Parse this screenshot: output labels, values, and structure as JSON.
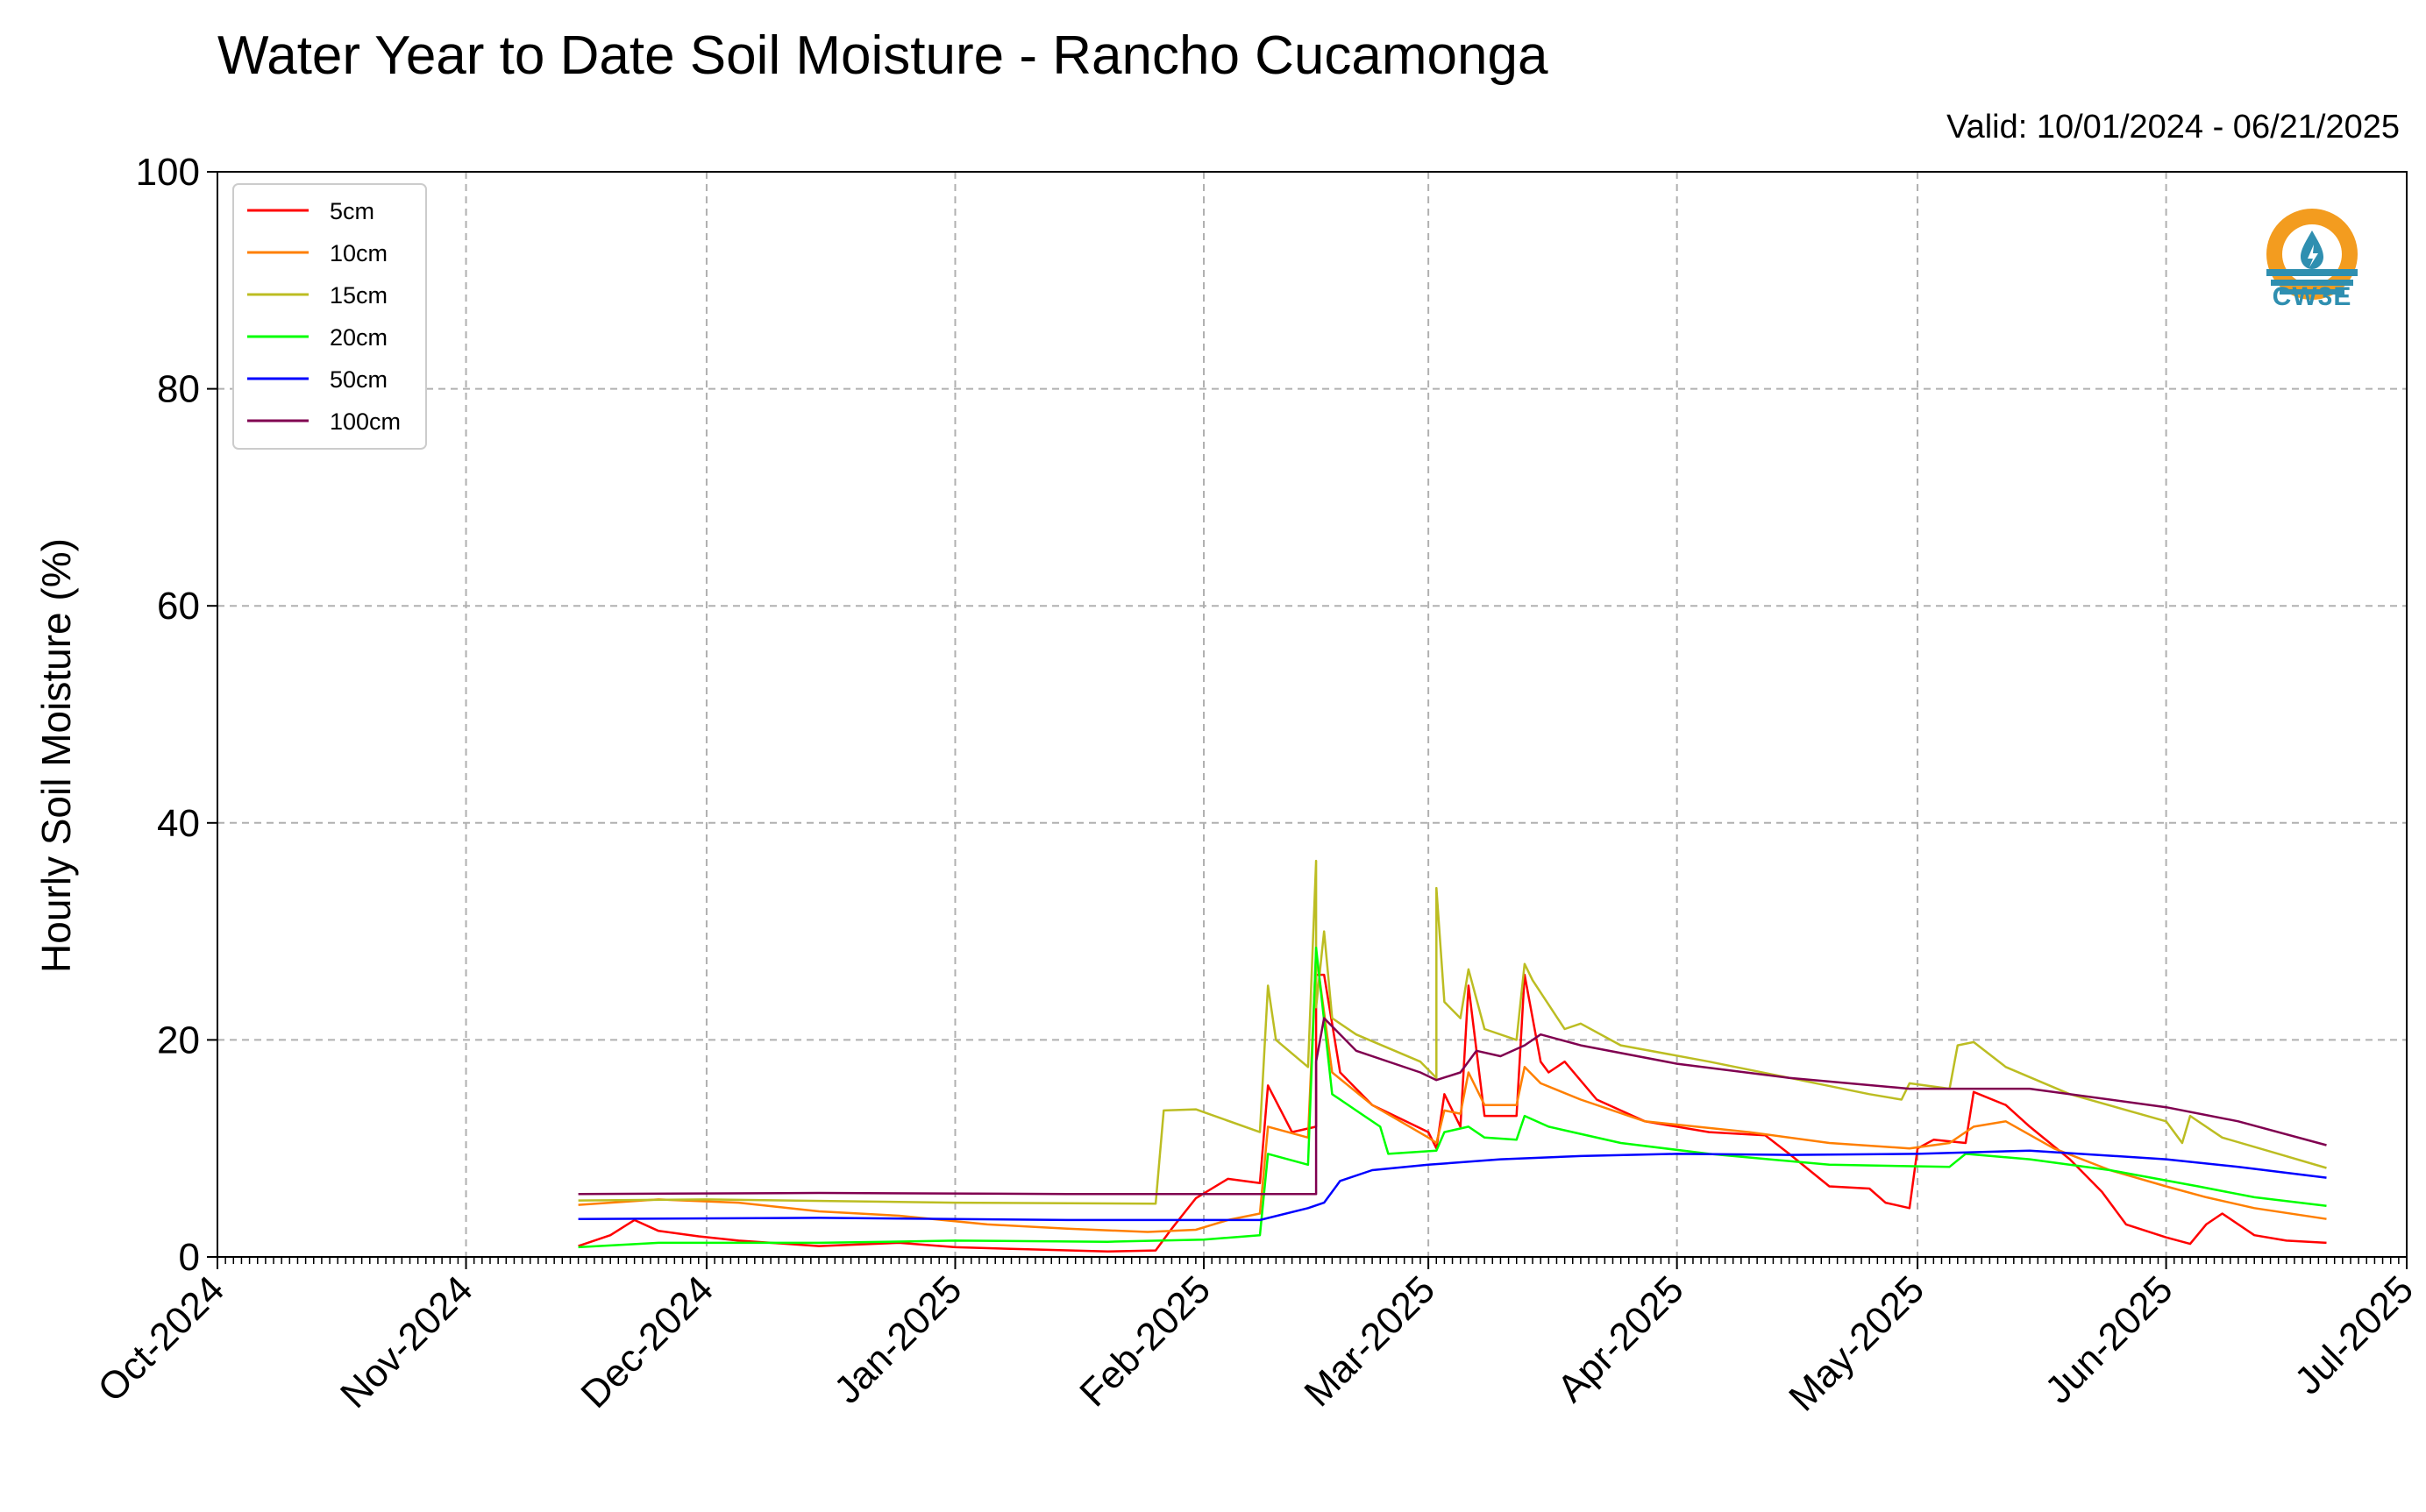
{
  "chart_data": {
    "type": "line",
    "title": "Water Year to Date Soil Moisture - Rancho Cucamonga",
    "subtitle": "Valid: 10/01/2024 - 06/21/2025",
    "ylabel": "Hourly Soil Moisture (%)",
    "xlabel": "",
    "ylim": [
      0,
      100
    ],
    "yticks": [
      0,
      20,
      40,
      60,
      80,
      100
    ],
    "xlim": [
      "2024-10-01",
      "2025-07-01"
    ],
    "xticks": [
      "Oct-2024",
      "Nov-2024",
      "Dec-2024",
      "Jan-2025",
      "Feb-2025",
      "Mar-2025",
      "Apr-2025",
      "May-2025",
      "Jun-2025",
      "Jul-2025"
    ],
    "grid": true,
    "legend_position": "top-left",
    "series": [
      {
        "name": "5cm",
        "color": "#ff0000",
        "points": [
          [
            "2024-11-15",
            1.0
          ],
          [
            "2024-11-19",
            2.0
          ],
          [
            "2024-11-22",
            3.4
          ],
          [
            "2024-11-25",
            2.4
          ],
          [
            "2024-11-30",
            1.9
          ],
          [
            "2024-12-05",
            1.5
          ],
          [
            "2024-12-15",
            1.0
          ],
          [
            "2024-12-25",
            1.3
          ],
          [
            "2025-01-01",
            0.9
          ],
          [
            "2025-01-10",
            0.7
          ],
          [
            "2025-01-20",
            0.5
          ],
          [
            "2025-01-26",
            0.6
          ],
          [
            "2025-01-28",
            2.6
          ],
          [
            "2025-01-31",
            5.4
          ],
          [
            "2025-02-04",
            7.2
          ],
          [
            "2025-02-08",
            6.8
          ],
          [
            "2025-02-08",
            6.8
          ],
          [
            "2025-02-09",
            15.8
          ],
          [
            "2025-02-12",
            11.5
          ],
          [
            "2025-02-15",
            12.0
          ],
          [
            "2025-02-15",
            26.0
          ],
          [
            "2025-02-16",
            26.0
          ],
          [
            "2025-02-18",
            17.0
          ],
          [
            "2025-02-22",
            14.0
          ],
          [
            "2025-03-01",
            11.5
          ],
          [
            "2025-03-02",
            10.0
          ],
          [
            "2025-03-03",
            15.0
          ],
          [
            "2025-03-05",
            12.0
          ],
          [
            "2025-03-06",
            25.0
          ],
          [
            "2025-03-08",
            13.0
          ],
          [
            "2025-03-12",
            13.0
          ],
          [
            "2025-03-13",
            26.0
          ],
          [
            "2025-03-15",
            18.0
          ],
          [
            "2025-03-16",
            17.0
          ],
          [
            "2025-03-18",
            18.0
          ],
          [
            "2025-03-22",
            14.5
          ],
          [
            "2025-03-28",
            12.5
          ],
          [
            "2025-04-05",
            11.5
          ],
          [
            "2025-04-12",
            11.2
          ],
          [
            "2025-04-15",
            9.5
          ],
          [
            "2025-04-20",
            6.5
          ],
          [
            "2025-04-25",
            6.3
          ],
          [
            "2025-04-27",
            5.0
          ],
          [
            "2025-04-30",
            4.5
          ],
          [
            "2025-05-01",
            10.0
          ],
          [
            "2025-05-03",
            10.8
          ],
          [
            "2025-05-07",
            10.5
          ],
          [
            "2025-05-08",
            15.2
          ],
          [
            "2025-05-12",
            14.0
          ],
          [
            "2025-05-15",
            12.0
          ],
          [
            "2025-05-20",
            9.0
          ],
          [
            "2025-05-24",
            6.0
          ],
          [
            "2025-05-27",
            3.0
          ],
          [
            "2025-06-01",
            1.8
          ],
          [
            "2025-06-04",
            1.2
          ],
          [
            "2025-06-06",
            3.0
          ],
          [
            "2025-06-08",
            4.0
          ],
          [
            "2025-06-12",
            2.0
          ],
          [
            "2025-06-16",
            1.5
          ],
          [
            "2025-06-21",
            1.3
          ]
        ]
      },
      {
        "name": "10cm",
        "color": "#ff7f00",
        "points": [
          [
            "2024-11-15",
            4.8
          ],
          [
            "2024-11-25",
            5.3
          ],
          [
            "2024-12-05",
            5.0
          ],
          [
            "2024-12-15",
            4.2
          ],
          [
            "2024-12-25",
            3.8
          ],
          [
            "2025-01-05",
            3.0
          ],
          [
            "2025-01-15",
            2.6
          ],
          [
            "2025-01-25",
            2.3
          ],
          [
            "2025-01-31",
            2.5
          ],
          [
            "2025-02-04",
            3.4
          ],
          [
            "2025-02-08",
            4.0
          ],
          [
            "2025-02-09",
            12.0
          ],
          [
            "2025-02-14",
            11.0
          ],
          [
            "2025-02-15",
            28.0
          ],
          [
            "2025-02-17",
            17.0
          ],
          [
            "2025-02-22",
            14.0
          ],
          [
            "2025-03-01",
            11.0
          ],
          [
            "2025-03-02",
            10.5
          ],
          [
            "2025-03-03",
            13.5
          ],
          [
            "2025-03-05",
            13.2
          ],
          [
            "2025-03-06",
            17.0
          ],
          [
            "2025-03-08",
            14.0
          ],
          [
            "2025-03-12",
            14.0
          ],
          [
            "2025-03-13",
            17.5
          ],
          [
            "2025-03-15",
            16.0
          ],
          [
            "2025-03-20",
            14.5
          ],
          [
            "2025-03-28",
            12.5
          ],
          [
            "2025-04-10",
            11.5
          ],
          [
            "2025-04-20",
            10.5
          ],
          [
            "2025-04-30",
            10.0
          ],
          [
            "2025-05-05",
            10.5
          ],
          [
            "2025-05-08",
            12.0
          ],
          [
            "2025-05-12",
            12.5
          ],
          [
            "2025-05-18",
            10.0
          ],
          [
            "2025-05-25",
            8.0
          ],
          [
            "2025-06-01",
            6.5
          ],
          [
            "2025-06-06",
            5.5
          ],
          [
            "2025-06-12",
            4.5
          ],
          [
            "2025-06-21",
            3.5
          ]
        ]
      },
      {
        "name": "15cm",
        "color": "#bcbd22",
        "points": [
          [
            "2024-11-15",
            5.2
          ],
          [
            "2024-12-01",
            5.3
          ],
          [
            "2025-01-01",
            5.0
          ],
          [
            "2025-01-26",
            4.9
          ],
          [
            "2025-01-27",
            13.5
          ],
          [
            "2025-01-31",
            13.6
          ],
          [
            "2025-02-08",
            11.5
          ],
          [
            "2025-02-09",
            25.0
          ],
          [
            "2025-02-10",
            20.0
          ],
          [
            "2025-02-14",
            17.5
          ],
          [
            "2025-02-15",
            36.5
          ],
          [
            "2025-02-15",
            23.0
          ],
          [
            "2025-02-16",
            30.0
          ],
          [
            "2025-02-17",
            22.0
          ],
          [
            "2025-02-20",
            20.5
          ],
          [
            "2025-02-28",
            18.0
          ],
          [
            "2025-03-02",
            16.5
          ],
          [
            "2025-03-02",
            34.0
          ],
          [
            "2025-03-03",
            23.5
          ],
          [
            "2025-03-05",
            22.0
          ],
          [
            "2025-03-06",
            26.5
          ],
          [
            "2025-03-08",
            21.0
          ],
          [
            "2025-03-12",
            20.0
          ],
          [
            "2025-03-13",
            27.0
          ],
          [
            "2025-03-14",
            25.5
          ],
          [
            "2025-03-18",
            21.0
          ],
          [
            "2025-03-20",
            21.5
          ],
          [
            "2025-03-25",
            19.5
          ],
          [
            "2025-04-05",
            18.0
          ],
          [
            "2025-04-15",
            16.5
          ],
          [
            "2025-04-25",
            15.0
          ],
          [
            "2025-04-29",
            14.5
          ],
          [
            "2025-04-30",
            16.0
          ],
          [
            "2025-05-05",
            15.5
          ],
          [
            "2025-05-06",
            19.5
          ],
          [
            "2025-05-08",
            19.8
          ],
          [
            "2025-05-12",
            17.5
          ],
          [
            "2025-05-20",
            15.0
          ],
          [
            "2025-06-01",
            12.5
          ],
          [
            "2025-06-03",
            10.5
          ],
          [
            "2025-06-04",
            13.0
          ],
          [
            "2025-06-08",
            11.0
          ],
          [
            "2025-06-15",
            9.5
          ],
          [
            "2025-06-21",
            8.2
          ]
        ]
      },
      {
        "name": "20cm",
        "color": "#00ff00",
        "points": [
          [
            "2024-11-15",
            0.9
          ],
          [
            "2024-11-25",
            1.3
          ],
          [
            "2024-12-15",
            1.3
          ],
          [
            "2025-01-01",
            1.5
          ],
          [
            "2025-01-20",
            1.4
          ],
          [
            "2025-02-01",
            1.6
          ],
          [
            "2025-02-08",
            2.0
          ],
          [
            "2025-02-09",
            9.5
          ],
          [
            "2025-02-14",
            8.5
          ],
          [
            "2025-02-15",
            28.5
          ],
          [
            "2025-02-17",
            15.0
          ],
          [
            "2025-02-20",
            13.5
          ],
          [
            "2025-02-23",
            12.0
          ],
          [
            "2025-02-24",
            9.5
          ],
          [
            "2025-03-02",
            9.8
          ],
          [
            "2025-03-03",
            11.5
          ],
          [
            "2025-03-06",
            12.0
          ],
          [
            "2025-03-08",
            11.0
          ],
          [
            "2025-03-12",
            10.8
          ],
          [
            "2025-03-13",
            13.0
          ],
          [
            "2025-03-16",
            12.0
          ],
          [
            "2025-03-25",
            10.5
          ],
          [
            "2025-04-05",
            9.5
          ],
          [
            "2025-04-20",
            8.5
          ],
          [
            "2025-05-05",
            8.3
          ],
          [
            "2025-05-07",
            9.5
          ],
          [
            "2025-05-15",
            9.0
          ],
          [
            "2025-05-25",
            8.0
          ],
          [
            "2025-06-05",
            6.5
          ],
          [
            "2025-06-12",
            5.5
          ],
          [
            "2025-06-21",
            4.7
          ]
        ]
      },
      {
        "name": "50cm",
        "color": "#0000ff",
        "points": [
          [
            "2024-11-15",
            3.5
          ],
          [
            "2024-12-15",
            3.6
          ],
          [
            "2025-01-15",
            3.4
          ],
          [
            "2025-02-08",
            3.4
          ],
          [
            "2025-02-14",
            4.5
          ],
          [
            "2025-02-16",
            5.0
          ],
          [
            "2025-02-18",
            7.0
          ],
          [
            "2025-02-22",
            8.0
          ],
          [
            "2025-03-01",
            8.5
          ],
          [
            "2025-03-10",
            9.0
          ],
          [
            "2025-03-20",
            9.3
          ],
          [
            "2025-04-01",
            9.5
          ],
          [
            "2025-04-15",
            9.4
          ],
          [
            "2025-05-01",
            9.5
          ],
          [
            "2025-05-15",
            9.8
          ],
          [
            "2025-06-01",
            9.0
          ],
          [
            "2025-06-10",
            8.3
          ],
          [
            "2025-06-21",
            7.3
          ]
        ]
      },
      {
        "name": "100cm",
        "color": "#800050",
        "points": [
          [
            "2024-11-15",
            5.8
          ],
          [
            "2024-12-15",
            5.9
          ],
          [
            "2025-01-15",
            5.8
          ],
          [
            "2025-02-15",
            5.8
          ],
          [
            "2025-02-15",
            18.0
          ],
          [
            "2025-02-16",
            22.0
          ],
          [
            "2025-02-20",
            19.0
          ],
          [
            "2025-02-28",
            17.0
          ],
          [
            "2025-03-02",
            16.3
          ],
          [
            "2025-03-05",
            17.0
          ],
          [
            "2025-03-07",
            19.0
          ],
          [
            "2025-03-10",
            18.5
          ],
          [
            "2025-03-13",
            19.5
          ],
          [
            "2025-03-15",
            20.5
          ],
          [
            "2025-03-20",
            19.5
          ],
          [
            "2025-04-01",
            17.8
          ],
          [
            "2025-04-15",
            16.5
          ],
          [
            "2025-04-30",
            15.5
          ],
          [
            "2025-05-15",
            15.5
          ],
          [
            "2025-06-01",
            13.8
          ],
          [
            "2025-06-10",
            12.5
          ],
          [
            "2025-06-21",
            10.3
          ]
        ]
      }
    ]
  },
  "logo": {
    "text": "CW3E",
    "accent": "#f39c1f",
    "water": "#2f8fb0"
  }
}
